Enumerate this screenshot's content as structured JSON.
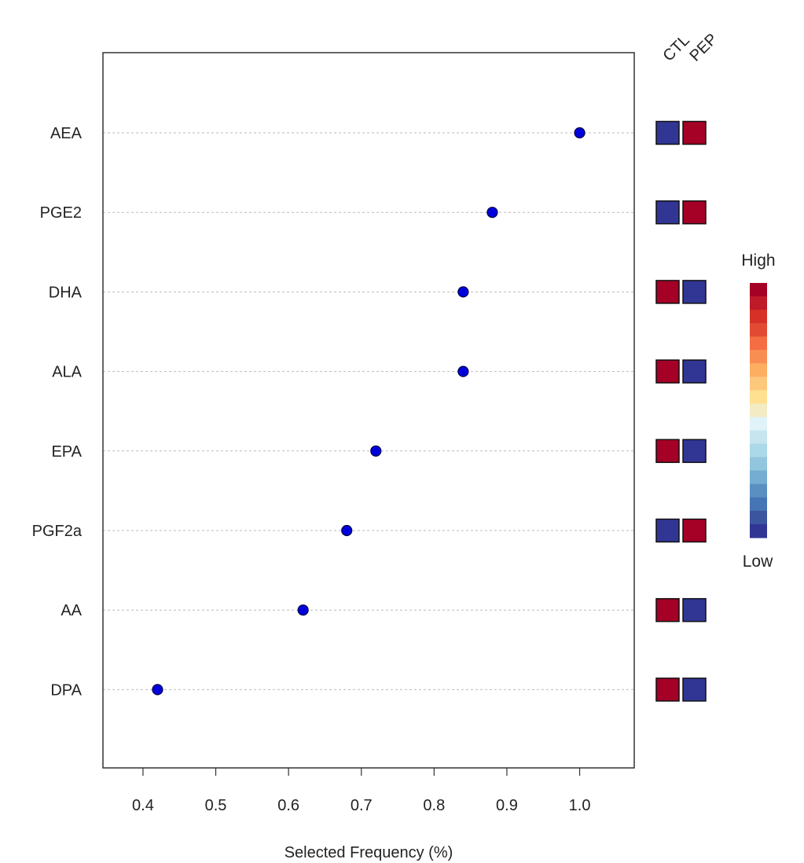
{
  "chart_data": {
    "type": "scatter",
    "xlabel": "Selected Frequency (%)",
    "xlim": [
      0.345,
      1.075
    ],
    "xticks": [
      "0.4",
      "0.5",
      "0.6",
      "0.7",
      "0.8",
      "0.9",
      "1.0"
    ],
    "grid": "horizontal-dashed",
    "series": [
      {
        "categories": [
          "AEA",
          "PGE2",
          "DHA",
          "ALA",
          "EPA",
          "PGF2a",
          "AA",
          "DPA"
        ],
        "values": [
          1.0,
          0.88,
          0.84,
          0.84,
          0.72,
          0.68,
          0.62,
          0.42
        ]
      }
    ],
    "point_color": "#0000dd",
    "groups": [
      "CTL",
      "PEP"
    ],
    "group_levels": [
      [
        "low",
        "high"
      ],
      [
        "low",
        "high"
      ],
      [
        "high",
        "low"
      ],
      [
        "high",
        "low"
      ],
      [
        "high",
        "low"
      ],
      [
        "low",
        "high"
      ],
      [
        "high",
        "low"
      ],
      [
        "high",
        "low"
      ]
    ],
    "level_colors": {
      "high": "#a50026",
      "low": "#313695"
    },
    "legend": {
      "placement": "right",
      "high_label": "High",
      "low_label": "Low",
      "colors": [
        "#a50026",
        "#be1a2a",
        "#d73027",
        "#e24a33",
        "#f46d43",
        "#f98e52",
        "#fdae61",
        "#fdc77c",
        "#fee090",
        "#f2ebc4",
        "#e0f3f8",
        "#c6e5ef",
        "#abd9e9",
        "#92c5de",
        "#74add1",
        "#5a8fc2",
        "#4575b4",
        "#3c559f",
        "#313695"
      ]
    }
  }
}
